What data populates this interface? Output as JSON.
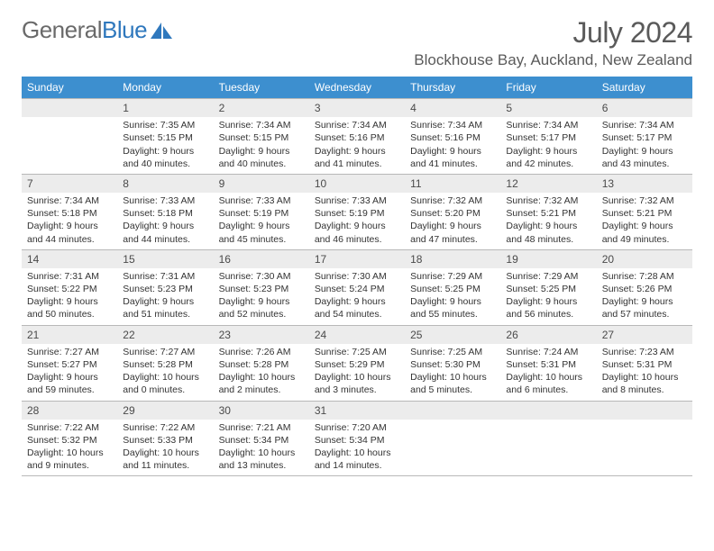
{
  "logo": {
    "text1": "General",
    "text2": "Blue"
  },
  "title": "July 2024",
  "location": "Blockhouse Bay, Auckland, New Zealand",
  "weekdays": [
    "Sunday",
    "Monday",
    "Tuesday",
    "Wednesday",
    "Thursday",
    "Friday",
    "Saturday"
  ],
  "colors": {
    "header_bg": "#3d8fcf",
    "daynum_bg": "#ececec",
    "border": "#b8b8b8",
    "logo_gray": "#6a6a6a",
    "logo_blue": "#2f78bd",
    "text": "#333333"
  },
  "weeks": [
    [
      {
        "n": "",
        "sr": "",
        "ss": "",
        "dl": ""
      },
      {
        "n": "1",
        "sr": "Sunrise: 7:35 AM",
        "ss": "Sunset: 5:15 PM",
        "dl": "Daylight: 9 hours and 40 minutes."
      },
      {
        "n": "2",
        "sr": "Sunrise: 7:34 AM",
        "ss": "Sunset: 5:15 PM",
        "dl": "Daylight: 9 hours and 40 minutes."
      },
      {
        "n": "3",
        "sr": "Sunrise: 7:34 AM",
        "ss": "Sunset: 5:16 PM",
        "dl": "Daylight: 9 hours and 41 minutes."
      },
      {
        "n": "4",
        "sr": "Sunrise: 7:34 AM",
        "ss": "Sunset: 5:16 PM",
        "dl": "Daylight: 9 hours and 41 minutes."
      },
      {
        "n": "5",
        "sr": "Sunrise: 7:34 AM",
        "ss": "Sunset: 5:17 PM",
        "dl": "Daylight: 9 hours and 42 minutes."
      },
      {
        "n": "6",
        "sr": "Sunrise: 7:34 AM",
        "ss": "Sunset: 5:17 PM",
        "dl": "Daylight: 9 hours and 43 minutes."
      }
    ],
    [
      {
        "n": "7",
        "sr": "Sunrise: 7:34 AM",
        "ss": "Sunset: 5:18 PM",
        "dl": "Daylight: 9 hours and 44 minutes."
      },
      {
        "n": "8",
        "sr": "Sunrise: 7:33 AM",
        "ss": "Sunset: 5:18 PM",
        "dl": "Daylight: 9 hours and 44 minutes."
      },
      {
        "n": "9",
        "sr": "Sunrise: 7:33 AM",
        "ss": "Sunset: 5:19 PM",
        "dl": "Daylight: 9 hours and 45 minutes."
      },
      {
        "n": "10",
        "sr": "Sunrise: 7:33 AM",
        "ss": "Sunset: 5:19 PM",
        "dl": "Daylight: 9 hours and 46 minutes."
      },
      {
        "n": "11",
        "sr": "Sunrise: 7:32 AM",
        "ss": "Sunset: 5:20 PM",
        "dl": "Daylight: 9 hours and 47 minutes."
      },
      {
        "n": "12",
        "sr": "Sunrise: 7:32 AM",
        "ss": "Sunset: 5:21 PM",
        "dl": "Daylight: 9 hours and 48 minutes."
      },
      {
        "n": "13",
        "sr": "Sunrise: 7:32 AM",
        "ss": "Sunset: 5:21 PM",
        "dl": "Daylight: 9 hours and 49 minutes."
      }
    ],
    [
      {
        "n": "14",
        "sr": "Sunrise: 7:31 AM",
        "ss": "Sunset: 5:22 PM",
        "dl": "Daylight: 9 hours and 50 minutes."
      },
      {
        "n": "15",
        "sr": "Sunrise: 7:31 AM",
        "ss": "Sunset: 5:23 PM",
        "dl": "Daylight: 9 hours and 51 minutes."
      },
      {
        "n": "16",
        "sr": "Sunrise: 7:30 AM",
        "ss": "Sunset: 5:23 PM",
        "dl": "Daylight: 9 hours and 52 minutes."
      },
      {
        "n": "17",
        "sr": "Sunrise: 7:30 AM",
        "ss": "Sunset: 5:24 PM",
        "dl": "Daylight: 9 hours and 54 minutes."
      },
      {
        "n": "18",
        "sr": "Sunrise: 7:29 AM",
        "ss": "Sunset: 5:25 PM",
        "dl": "Daylight: 9 hours and 55 minutes."
      },
      {
        "n": "19",
        "sr": "Sunrise: 7:29 AM",
        "ss": "Sunset: 5:25 PM",
        "dl": "Daylight: 9 hours and 56 minutes."
      },
      {
        "n": "20",
        "sr": "Sunrise: 7:28 AM",
        "ss": "Sunset: 5:26 PM",
        "dl": "Daylight: 9 hours and 57 minutes."
      }
    ],
    [
      {
        "n": "21",
        "sr": "Sunrise: 7:27 AM",
        "ss": "Sunset: 5:27 PM",
        "dl": "Daylight: 9 hours and 59 minutes."
      },
      {
        "n": "22",
        "sr": "Sunrise: 7:27 AM",
        "ss": "Sunset: 5:28 PM",
        "dl": "Daylight: 10 hours and 0 minutes."
      },
      {
        "n": "23",
        "sr": "Sunrise: 7:26 AM",
        "ss": "Sunset: 5:28 PM",
        "dl": "Daylight: 10 hours and 2 minutes."
      },
      {
        "n": "24",
        "sr": "Sunrise: 7:25 AM",
        "ss": "Sunset: 5:29 PM",
        "dl": "Daylight: 10 hours and 3 minutes."
      },
      {
        "n": "25",
        "sr": "Sunrise: 7:25 AM",
        "ss": "Sunset: 5:30 PM",
        "dl": "Daylight: 10 hours and 5 minutes."
      },
      {
        "n": "26",
        "sr": "Sunrise: 7:24 AM",
        "ss": "Sunset: 5:31 PM",
        "dl": "Daylight: 10 hours and 6 minutes."
      },
      {
        "n": "27",
        "sr": "Sunrise: 7:23 AM",
        "ss": "Sunset: 5:31 PM",
        "dl": "Daylight: 10 hours and 8 minutes."
      }
    ],
    [
      {
        "n": "28",
        "sr": "Sunrise: 7:22 AM",
        "ss": "Sunset: 5:32 PM",
        "dl": "Daylight: 10 hours and 9 minutes."
      },
      {
        "n": "29",
        "sr": "Sunrise: 7:22 AM",
        "ss": "Sunset: 5:33 PM",
        "dl": "Daylight: 10 hours and 11 minutes."
      },
      {
        "n": "30",
        "sr": "Sunrise: 7:21 AM",
        "ss": "Sunset: 5:34 PM",
        "dl": "Daylight: 10 hours and 13 minutes."
      },
      {
        "n": "31",
        "sr": "Sunrise: 7:20 AM",
        "ss": "Sunset: 5:34 PM",
        "dl": "Daylight: 10 hours and 14 minutes."
      },
      {
        "n": "",
        "sr": "",
        "ss": "",
        "dl": ""
      },
      {
        "n": "",
        "sr": "",
        "ss": "",
        "dl": ""
      },
      {
        "n": "",
        "sr": "",
        "ss": "",
        "dl": ""
      }
    ]
  ]
}
